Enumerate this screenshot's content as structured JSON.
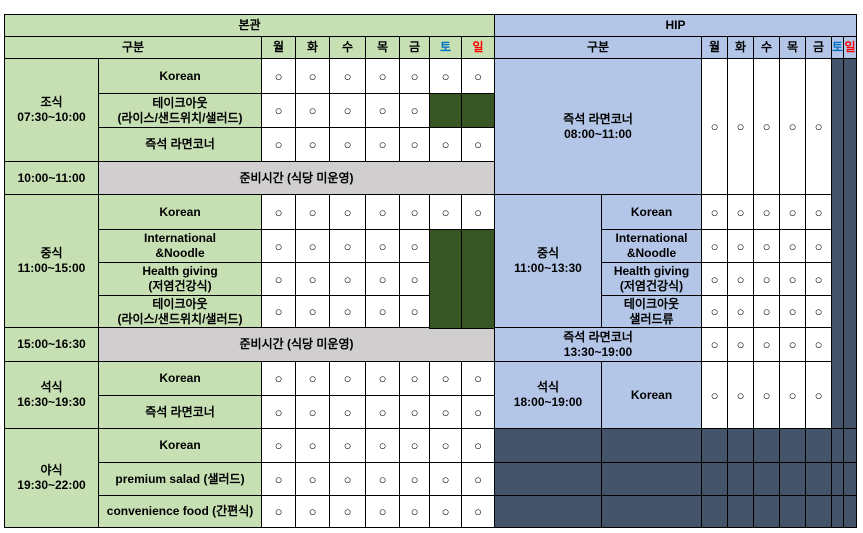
{
  "sections": {
    "main": "본관",
    "hip": "HIP"
  },
  "header": {
    "gubun": "구분",
    "days": [
      "월",
      "화",
      "수",
      "목",
      "금",
      "토",
      "일"
    ]
  },
  "mark": "○",
  "main": {
    "breakfast": {
      "label": [
        "조식",
        "07:30~10:00"
      ]
    },
    "prep1": {
      "time": "10:00~11:00",
      "label": "준비시간 (식당 미운영)"
    },
    "lunch": {
      "label": [
        "중식",
        "11:00~15:00"
      ]
    },
    "prep2": {
      "time": "15:00~16:30",
      "label": "준비시간 (식당 미운영)"
    },
    "dinner": {
      "label": [
        "석식",
        "16:30~19:30"
      ]
    },
    "late": {
      "label": [
        "야식",
        "19:30~22:00"
      ]
    },
    "items": {
      "korean": "Korean",
      "takeout": [
        "테이크아웃",
        "(라이스/샌드위치/샐러드)"
      ],
      "ramen": "즉석 라면코너",
      "intl": [
        "International",
        "&Noodle"
      ],
      "health": [
        "Health giving",
        "(저염건강식)"
      ],
      "salad": "premium salad (샐러드)",
      "conv": "convenience food (간편식)"
    }
  },
  "hip": {
    "ramen_am": [
      "즉석 라면코너",
      "08:00~11:00"
    ],
    "lunch": {
      "label": [
        "중식",
        "11:00~13:30"
      ]
    },
    "ramen_pm": [
      "즉석 라면코너",
      "13:30~19:00"
    ],
    "dinner": {
      "label": [
        "석식",
        "18:00~19:00"
      ]
    },
    "items": {
      "korean": "Korean",
      "intl": [
        "International",
        "&Noodle"
      ],
      "health": [
        "Health giving",
        "(저염건강식)"
      ],
      "takeout": [
        "테이크아웃",
        "샐러드류"
      ]
    }
  },
  "colors": {
    "main_header": "#c6e0b4",
    "prep": "#d0cece",
    "hip_header": "#b4c6e7",
    "closed_main": "#375623",
    "closed_hip": "#44546a",
    "saturday": "#0070c0",
    "sunday": "#ff0000"
  }
}
